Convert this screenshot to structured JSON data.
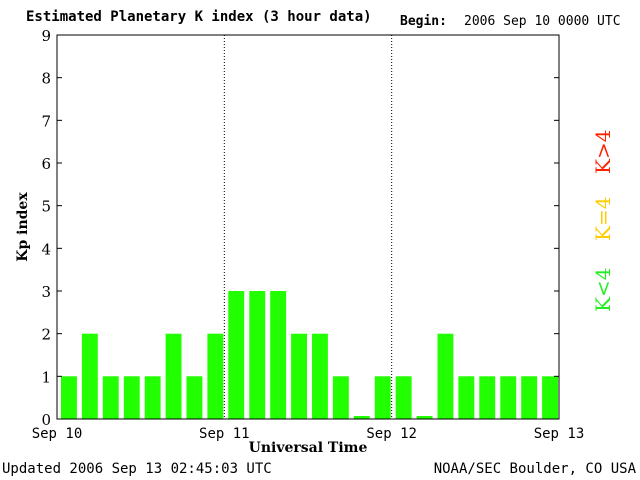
{
  "header": {
    "title": "Estimated Planetary K index (3 hour data)",
    "begin_label": "Begin:",
    "begin_value": "2006 Sep 10 0000 UTC"
  },
  "footer": {
    "updated": "Updated 2006 Sep 13 02:45:03 UTC",
    "source": "NOAA/SEC Boulder, CO USA"
  },
  "legend": {
    "high": {
      "label": "K>4",
      "color": "#ff2200"
    },
    "equal": {
      "label": "K=4",
      "color": "#ffcc00"
    },
    "low": {
      "label": "K<4",
      "color": "#22ee22"
    }
  },
  "chart_data": {
    "type": "bar",
    "title": "Estimated Planetary K index (3 hour data)",
    "xlabel": "Universal Time",
    "ylabel": "Kp index",
    "ylim": [
      0,
      9
    ],
    "yticks": [
      0,
      1,
      2,
      3,
      4,
      5,
      6,
      7,
      8,
      9
    ],
    "x_tick_labels": [
      "Sep 10",
      "Sep 11",
      "Sep 12",
      "Sep 13"
    ],
    "interval_hours": 3,
    "bar_color": "#22ff00",
    "values": [
      1,
      2,
      1,
      1,
      1,
      2,
      1,
      2,
      3,
      3,
      3,
      2,
      2,
      1,
      0,
      1,
      1,
      0,
      2,
      1,
      1,
      1,
      1,
      1
    ]
  }
}
